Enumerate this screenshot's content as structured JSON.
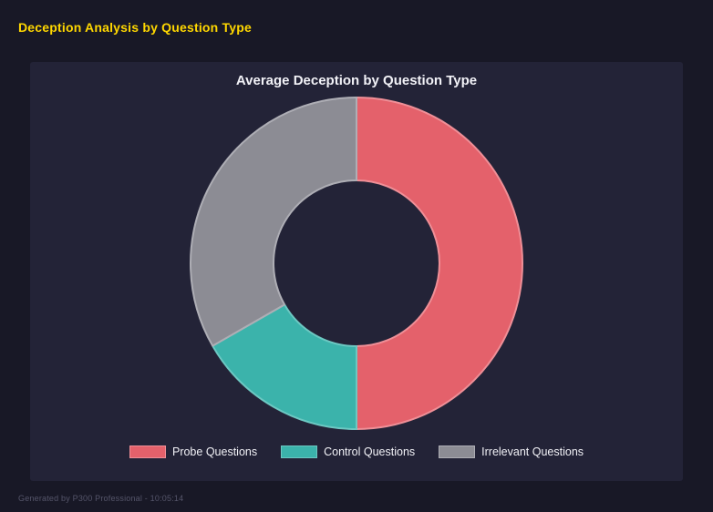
{
  "page": {
    "title": "Deception Analysis by Question Type",
    "title_color": "#ffd700",
    "footer": "Generated by P300 Professional - 10:05:14"
  },
  "chart_data": {
    "type": "pie",
    "subtype": "donut",
    "title": "Average Deception by Question Type",
    "categories": [
      "Probe Questions",
      "Control Questions",
      "Irrelevant Questions"
    ],
    "values": [
      50.0,
      16.7,
      33.3
    ],
    "values_unit": "percent of total (estimated from arc angles)",
    "colors": [
      "#e4616b",
      "#3bb3ab",
      "#8c8c94"
    ],
    "border_colors": [
      "#ef8f97",
      "#6cc8c2",
      "#aeaeb5"
    ],
    "donut_hole_ratio": 0.5,
    "legend_position": "bottom",
    "start_angle_deg": 0,
    "direction": "clockwise"
  }
}
